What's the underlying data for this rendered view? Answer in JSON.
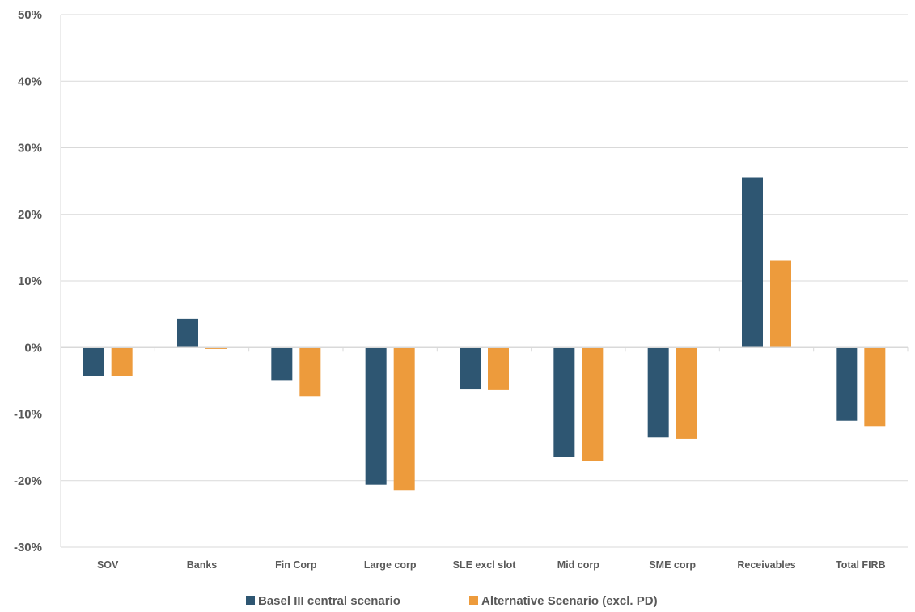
{
  "chart_data": {
    "type": "bar",
    "categories": [
      "SOV",
      "Banks",
      "Fin Corp",
      "Large corp",
      "SLE excl slot",
      "Mid corp",
      "SME corp",
      "Receivables",
      "Total FIRB"
    ],
    "series": [
      {
        "name": "Basel III central scenario",
        "color": "#2e5672",
        "values": [
          -4.3,
          4.3,
          -5.0,
          -20.6,
          -6.3,
          -16.5,
          -13.5,
          25.5,
          -11.0
        ]
      },
      {
        "name": "Alternative Scenario (excl. PD)",
        "color": "#ed9b3c",
        "values": [
          -4.3,
          -0.2,
          -7.3,
          -21.4,
          -6.4,
          -17.0,
          -13.7,
          13.1,
          -11.8
        ]
      }
    ],
    "ylim": [
      -30,
      50
    ],
    "yticks": [
      -30,
      -20,
      -10,
      0,
      10,
      20,
      30,
      40,
      50
    ],
    "ytick_labels": [
      "-30%",
      "-20%",
      "-10%",
      "0%",
      "10%",
      "20%",
      "30%",
      "40%",
      "50%"
    ],
    "grid": true,
    "legend_position": "bottom",
    "colors": {
      "gridline": "#d9d9d9",
      "axis": "#d9d9d9",
      "text": "#595959"
    }
  }
}
